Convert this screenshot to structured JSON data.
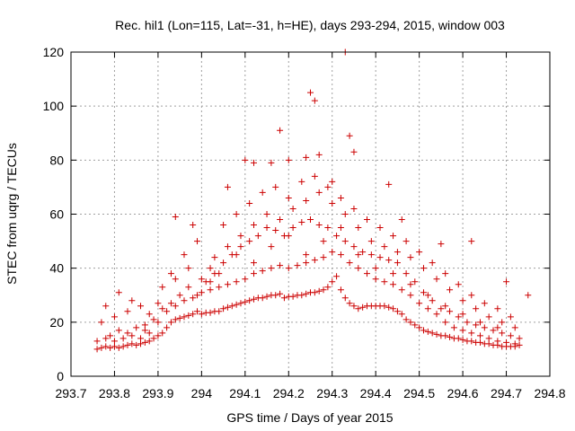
{
  "chart_data": {
    "type": "scatter",
    "title": "Rec. hil1 (Lon=115, Lat=-31, h=HE), days 293-294, 2015, window 003",
    "xlabel": "GPS time / Days of year 2015",
    "ylabel": "STEC from uqrg / TECUs",
    "xlim": [
      293.7,
      294.8
    ],
    "ylim": [
      0,
      120
    ],
    "x_ticks": [
      "293.7",
      "293.8",
      "293.9",
      "294",
      "294.1",
      "294.2",
      "294.3",
      "294.4",
      "294.5",
      "294.6",
      "294.7",
      "294.8"
    ],
    "y_ticks": [
      "0",
      "20",
      "40",
      "60",
      "80",
      "100",
      "120"
    ],
    "grid": true,
    "marker": "+",
    "color": "#cc0000",
    "series": [
      {
        "points": [
          [
            293.76,
            10
          ],
          [
            293.77,
            10.5
          ],
          [
            293.78,
            11
          ],
          [
            293.79,
            10.5
          ],
          [
            293.8,
            11
          ],
          [
            293.81,
            10.5
          ],
          [
            293.82,
            11
          ],
          [
            293.83,
            11.5
          ],
          [
            293.84,
            12
          ],
          [
            293.85,
            11.5
          ],
          [
            293.86,
            12
          ],
          [
            293.87,
            12.5
          ],
          [
            293.88,
            13
          ],
          [
            293.89,
            14
          ],
          [
            293.9,
            15
          ],
          [
            293.91,
            16
          ],
          [
            293.92,
            18
          ],
          [
            293.93,
            20
          ],
          [
            293.94,
            21
          ],
          [
            293.95,
            21.5
          ],
          [
            293.96,
            22
          ],
          [
            293.97,
            22.5
          ],
          [
            293.98,
            23
          ],
          [
            293.99,
            24
          ],
          [
            294.0,
            23
          ],
          [
            294.01,
            23.5
          ],
          [
            294.02,
            23.5
          ],
          [
            294.03,
            24
          ],
          [
            294.04,
            24
          ],
          [
            294.05,
            25
          ],
          [
            294.06,
            25.5
          ],
          [
            294.07,
            26
          ],
          [
            294.08,
            26.5
          ],
          [
            294.09,
            27
          ],
          [
            294.1,
            27.5
          ],
          [
            294.11,
            28
          ],
          [
            294.12,
            28.5
          ],
          [
            294.13,
            29
          ],
          [
            294.14,
            29
          ],
          [
            294.15,
            29.5
          ],
          [
            294.16,
            30
          ],
          [
            294.17,
            30
          ],
          [
            294.18,
            30.5
          ],
          [
            294.19,
            29
          ],
          [
            294.2,
            29.5
          ],
          [
            294.21,
            29.5
          ],
          [
            294.22,
            30
          ],
          [
            294.23,
            30
          ],
          [
            294.24,
            30.5
          ],
          [
            294.25,
            31
          ],
          [
            294.26,
            31
          ],
          [
            294.27,
            31.5
          ],
          [
            294.28,
            32
          ],
          [
            294.29,
            33
          ],
          [
            294.3,
            35
          ],
          [
            294.31,
            37
          ],
          [
            294.32,
            32
          ],
          [
            294.33,
            29
          ],
          [
            294.34,
            27
          ],
          [
            294.35,
            26
          ],
          [
            294.36,
            25
          ],
          [
            294.37,
            25.5
          ],
          [
            294.38,
            26
          ],
          [
            294.39,
            26
          ],
          [
            294.4,
            26
          ],
          [
            294.41,
            26
          ],
          [
            294.42,
            26
          ],
          [
            294.43,
            25.5
          ],
          [
            294.44,
            25
          ],
          [
            294.45,
            24
          ],
          [
            294.46,
            23
          ],
          [
            294.47,
            21
          ],
          [
            294.48,
            20
          ],
          [
            294.49,
            19
          ],
          [
            294.5,
            18
          ],
          [
            294.51,
            17
          ],
          [
            294.52,
            16.5
          ],
          [
            294.53,
            16
          ],
          [
            294.54,
            15.5
          ],
          [
            294.55,
            15
          ],
          [
            294.56,
            15
          ],
          [
            294.57,
            14.5
          ],
          [
            294.58,
            14
          ],
          [
            294.59,
            14
          ],
          [
            294.6,
            13.5
          ],
          [
            294.61,
            13
          ],
          [
            294.62,
            13
          ],
          [
            294.63,
            12.5
          ],
          [
            294.64,
            12.5
          ],
          [
            294.65,
            12
          ],
          [
            294.66,
            12
          ],
          [
            294.67,
            11.5
          ],
          [
            294.68,
            11.5
          ],
          [
            294.69,
            11
          ],
          [
            294.7,
            11
          ],
          [
            294.71,
            11
          ],
          [
            294.72,
            11
          ],
          [
            294.73,
            11.5
          ],
          [
            293.76,
            13
          ],
          [
            293.78,
            14
          ],
          [
            293.8,
            13
          ],
          [
            293.82,
            14
          ],
          [
            293.84,
            15
          ],
          [
            293.86,
            14
          ],
          [
            293.88,
            16
          ],
          [
            293.9,
            20
          ],
          [
            293.92,
            24
          ],
          [
            293.94,
            26
          ],
          [
            293.96,
            28
          ],
          [
            293.98,
            29
          ],
          [
            294.0,
            31
          ],
          [
            294.02,
            32
          ],
          [
            294.04,
            33
          ],
          [
            294.06,
            34
          ],
          [
            294.08,
            35
          ],
          [
            294.1,
            36
          ],
          [
            294.12,
            38
          ],
          [
            294.14,
            39
          ],
          [
            294.16,
            40
          ],
          [
            294.18,
            41
          ],
          [
            294.2,
            40
          ],
          [
            294.22,
            41
          ],
          [
            294.24,
            42
          ],
          [
            294.26,
            43
          ],
          [
            294.28,
            44
          ],
          [
            294.3,
            46
          ],
          [
            294.32,
            45
          ],
          [
            294.34,
            42
          ],
          [
            294.36,
            40
          ],
          [
            294.38,
            38
          ],
          [
            294.4,
            36
          ],
          [
            294.42,
            35
          ],
          [
            294.44,
            34
          ],
          [
            294.46,
            32
          ],
          [
            294.48,
            30
          ],
          [
            294.5,
            27
          ],
          [
            294.52,
            25
          ],
          [
            294.54,
            23
          ],
          [
            294.56,
            20
          ],
          [
            294.58,
            18
          ],
          [
            294.6,
            17
          ],
          [
            294.62,
            16
          ],
          [
            294.64,
            15
          ],
          [
            294.66,
            14
          ],
          [
            294.68,
            13
          ],
          [
            294.7,
            12.5
          ],
          [
            294.72,
            12
          ],
          [
            293.79,
            15
          ],
          [
            293.81,
            17
          ],
          [
            293.83,
            16
          ],
          [
            293.85,
            18
          ],
          [
            293.87,
            17
          ],
          [
            293.89,
            21
          ],
          [
            293.91,
            25
          ],
          [
            293.93,
            27
          ],
          [
            293.95,
            30
          ],
          [
            293.97,
            33
          ],
          [
            293.99,
            30
          ],
          [
            294.01,
            35
          ],
          [
            294.03,
            38
          ],
          [
            294.05,
            42
          ],
          [
            294.07,
            45
          ],
          [
            294.09,
            48
          ],
          [
            294.11,
            50
          ],
          [
            294.13,
            52
          ],
          [
            294.15,
            55
          ],
          [
            294.17,
            54
          ],
          [
            294.19,
            52
          ],
          [
            294.21,
            55
          ],
          [
            294.23,
            57
          ],
          [
            294.25,
            58
          ],
          [
            294.27,
            56
          ],
          [
            294.29,
            55
          ],
          [
            294.31,
            52
          ],
          [
            294.33,
            50
          ],
          [
            294.35,
            48
          ],
          [
            294.37,
            46
          ],
          [
            294.39,
            45
          ],
          [
            294.41,
            44
          ],
          [
            294.43,
            43
          ],
          [
            294.45,
            42
          ],
          [
            294.47,
            38
          ],
          [
            294.49,
            35
          ],
          [
            294.51,
            31
          ],
          [
            294.53,
            28
          ],
          [
            294.55,
            25
          ],
          [
            294.57,
            24
          ],
          [
            294.59,
            22
          ],
          [
            294.61,
            20
          ],
          [
            294.63,
            19
          ],
          [
            294.65,
            18
          ],
          [
            294.67,
            17
          ],
          [
            294.69,
            16
          ],
          [
            294.71,
            15
          ],
          [
            294.73,
            14
          ],
          [
            293.77,
            20
          ],
          [
            293.8,
            22
          ],
          [
            293.83,
            24
          ],
          [
            293.86,
            26
          ],
          [
            293.88,
            23
          ],
          [
            293.91,
            33
          ],
          [
            293.94,
            36
          ],
          [
            293.97,
            40
          ],
          [
            294.0,
            36
          ],
          [
            294.03,
            44
          ],
          [
            294.06,
            48
          ],
          [
            294.09,
            52
          ],
          [
            294.12,
            56
          ],
          [
            294.15,
            60
          ],
          [
            294.18,
            58
          ],
          [
            294.21,
            62
          ],
          [
            294.24,
            65
          ],
          [
            294.27,
            68
          ],
          [
            294.3,
            64
          ],
          [
            294.33,
            60
          ],
          [
            294.36,
            55
          ],
          [
            294.39,
            50
          ],
          [
            294.42,
            48
          ],
          [
            294.45,
            46
          ],
          [
            294.48,
            44
          ],
          [
            294.51,
            40
          ],
          [
            294.54,
            36
          ],
          [
            294.57,
            32
          ],
          [
            294.6,
            28
          ],
          [
            294.63,
            25
          ],
          [
            294.66,
            22
          ],
          [
            294.69,
            20
          ],
          [
            294.72,
            18
          ],
          [
            293.78,
            26
          ],
          [
            293.81,
            31
          ],
          [
            293.84,
            28
          ],
          [
            293.87,
            19
          ],
          [
            293.9,
            27
          ],
          [
            293.93,
            38
          ],
          [
            293.96,
            45
          ],
          [
            293.99,
            50
          ],
          [
            294.02,
            40
          ],
          [
            294.05,
            56
          ],
          [
            294.08,
            60
          ],
          [
            294.11,
            64
          ],
          [
            294.14,
            68
          ],
          [
            294.17,
            70
          ],
          [
            294.2,
            66
          ],
          [
            294.23,
            72
          ],
          [
            294.26,
            74
          ],
          [
            294.29,
            70
          ],
          [
            294.32,
            66
          ],
          [
            294.35,
            62
          ],
          [
            294.38,
            58
          ],
          [
            294.41,
            55
          ],
          [
            294.44,
            52
          ],
          [
            294.47,
            50
          ],
          [
            294.5,
            46
          ],
          [
            294.53,
            42
          ],
          [
            294.56,
            38
          ],
          [
            294.59,
            34
          ],
          [
            294.62,
            30
          ],
          [
            294.65,
            27
          ],
          [
            294.68,
            25
          ],
          [
            294.71,
            22
          ],
          [
            293.94,
            59
          ],
          [
            293.98,
            56
          ],
          [
            294.06,
            70
          ],
          [
            294.1,
            80
          ],
          [
            294.12,
            79
          ],
          [
            294.16,
            79
          ],
          [
            294.18,
            91
          ],
          [
            294.2,
            80
          ],
          [
            294.24,
            81
          ],
          [
            294.25,
            105
          ],
          [
            294.26,
            102
          ],
          [
            294.27,
            82
          ],
          [
            294.3,
            72
          ],
          [
            294.33,
            120
          ],
          [
            294.34,
            89
          ],
          [
            294.35,
            83
          ],
          [
            294.43,
            71
          ],
          [
            294.46,
            58
          ],
          [
            294.55,
            49
          ],
          [
            294.62,
            50
          ],
          [
            294.7,
            35
          ],
          [
            294.75,
            30
          ],
          [
            294.02,
            35
          ],
          [
            294.04,
            38
          ],
          [
            294.08,
            45
          ],
          [
            294.12,
            42
          ],
          [
            294.16,
            48
          ],
          [
            294.2,
            52
          ],
          [
            294.24,
            45
          ],
          [
            294.28,
            50
          ],
          [
            294.32,
            55
          ],
          [
            294.36,
            45
          ],
          [
            294.4,
            40
          ],
          [
            294.44,
            38
          ],
          [
            294.48,
            34
          ],
          [
            294.52,
            30
          ],
          [
            294.56,
            26
          ],
          [
            294.6,
            23
          ],
          [
            294.64,
            20
          ],
          [
            294.68,
            18
          ]
        ]
      }
    ]
  }
}
